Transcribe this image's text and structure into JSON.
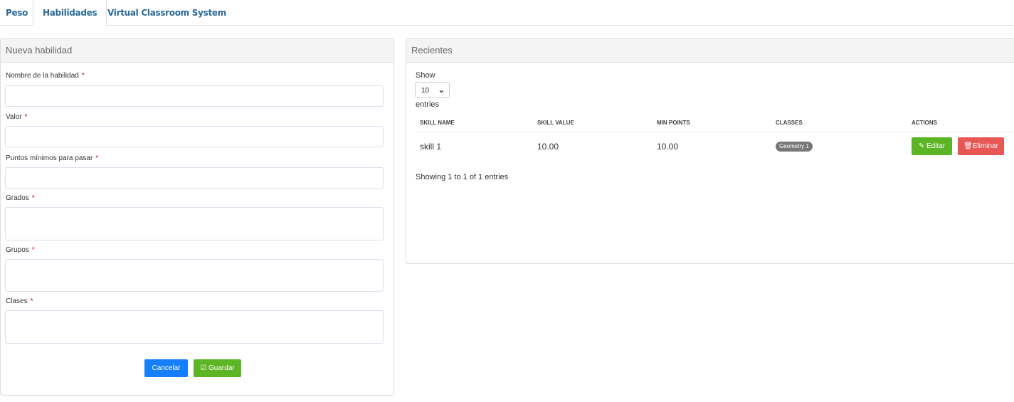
{
  "tabs": [
    {
      "label": "Peso"
    },
    {
      "label": "Habilidades",
      "active": true
    },
    {
      "label": "Virtual Classroom System"
    }
  ],
  "form": {
    "title": "Nueva habilidad",
    "required_mark": "*",
    "fields": [
      {
        "label": "Nombre de la habilidad",
        "value": ""
      },
      {
        "label": "Valor",
        "value": ""
      },
      {
        "label": "Puntos mínimos para pasar",
        "value": ""
      },
      {
        "label": "Grados",
        "value": ""
      },
      {
        "label": "Grupos",
        "value": ""
      },
      {
        "label": "Clases",
        "value": ""
      }
    ],
    "cancel_label": "Cancelar",
    "save_label": "Guardar"
  },
  "recent": {
    "title": "Recientes",
    "show_label": "Show",
    "entries_label": "entries",
    "page_size": "10",
    "columns": [
      "SKILL NAME",
      "SKILL VALUE",
      "MIN POINTS",
      "CLASSES",
      "ACTIONS"
    ],
    "rows": [
      {
        "name": "skill 1",
        "value": "10.00",
        "min_points": "10.00",
        "classes": "Geometry 1"
      }
    ],
    "edit_label": "Editar",
    "delete_label": "Eliminar",
    "info": "Showing 1 to 1 of 1 entries"
  },
  "colors": {
    "primary": "#157efb",
    "success": "#5cb524",
    "danger": "#e85656",
    "badge": "#777777",
    "link": "#2a6a9a"
  }
}
